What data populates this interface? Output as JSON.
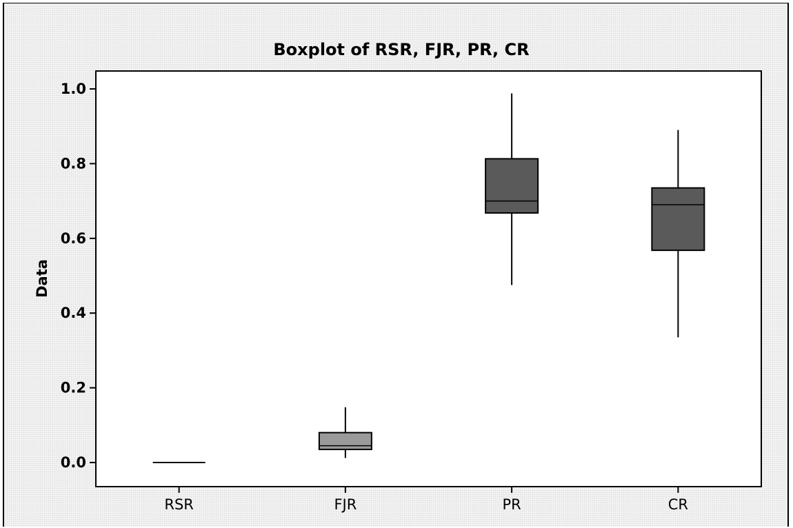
{
  "chart_data": {
    "type": "boxplot",
    "title": "Boxplot of RSR, FJR, PR, CR",
    "xlabel": "",
    "ylabel": "Data",
    "ylim": [
      -0.05,
      1.05
    ],
    "yticks": [
      "0.0",
      "0.2",
      "0.4",
      "0.6",
      "0.8",
      "1.0"
    ],
    "grid": false,
    "categories": [
      "RSR",
      "FJR",
      "PR",
      "CR"
    ],
    "boxes": [
      {
        "name": "RSR",
        "min": 0.0,
        "q1": 0.0,
        "median": 0.0,
        "q3": 0.0,
        "max": 0.0,
        "color": "#000000"
      },
      {
        "name": "FJR",
        "min": 0.012,
        "q1": 0.035,
        "median": 0.045,
        "q3": 0.08,
        "max": 0.148,
        "color": "#9a9a9a"
      },
      {
        "name": "PR",
        "min": 0.475,
        "q1": 0.668,
        "median": 0.7,
        "q3": 0.813,
        "max": 0.988,
        "color": "#5a5a5a"
      },
      {
        "name": "CR",
        "min": 0.335,
        "q1": 0.568,
        "median": 0.69,
        "q3": 0.735,
        "max": 0.89,
        "color": "#5a5a5a"
      }
    ]
  }
}
